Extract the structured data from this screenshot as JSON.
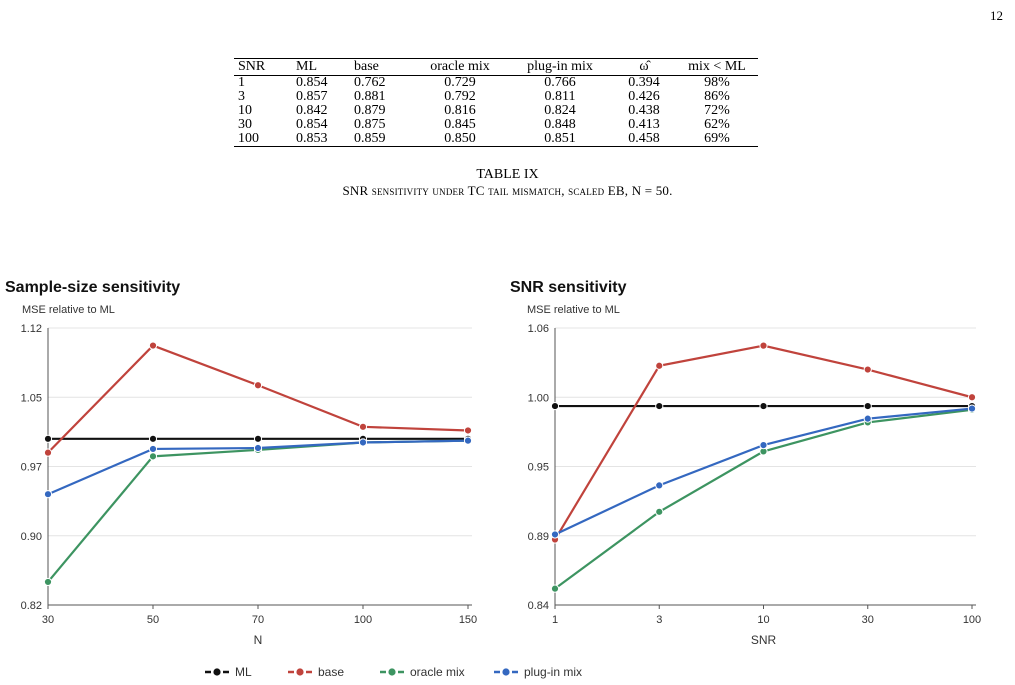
{
  "page_number": "12",
  "table": {
    "headers": [
      "SNR",
      "ML",
      "base",
      "oracle mix",
      "plug-in mix",
      "ω̂",
      "mix < ML"
    ],
    "rows": [
      [
        "1",
        "0.854",
        "0.762",
        "0.729",
        "0.766",
        "0.394",
        "98%"
      ],
      [
        "3",
        "0.857",
        "0.881",
        "0.792",
        "0.811",
        "0.426",
        "86%"
      ],
      [
        "10",
        "0.842",
        "0.879",
        "0.816",
        "0.824",
        "0.438",
        "72%"
      ],
      [
        "30",
        "0.854",
        "0.875",
        "0.845",
        "0.848",
        "0.413",
        "62%"
      ],
      [
        "100",
        "0.853",
        "0.859",
        "0.850",
        "0.851",
        "0.458",
        "69%"
      ]
    ],
    "label": "TABLE IX",
    "caption": "SNR sensitivity under TC tail mismatch, scaled EB, N = 50."
  },
  "chart_data": [
    {
      "type": "line",
      "title": "Sample-size sensitivity",
      "subtitle": "MSE relative to ML",
      "xlabel": "N",
      "ylabel": "",
      "categories": [
        "30",
        "50",
        "70",
        "100",
        "150"
      ],
      "yticks": [
        "0.82",
        "0.90",
        "0.97",
        "1.05",
        "1.12"
      ],
      "ylim": [
        0.82,
        1.12
      ],
      "grid": "horizontal",
      "series": [
        {
          "name": "ML",
          "color": "#111111",
          "values": [
            1.0,
            1.0,
            1.0,
            1.0,
            1.0
          ]
        },
        {
          "name": "base",
          "color": "#c0433c",
          "values": [
            0.985,
            1.101,
            1.058,
            1.013,
            1.009
          ]
        },
        {
          "name": "oracle mix",
          "color": "#3d9461",
          "values": [
            0.845,
            0.981,
            0.988,
            0.996,
            0.998
          ]
        },
        {
          "name": "plug-in mix",
          "color": "#3468c0",
          "values": [
            0.94,
            0.989,
            0.99,
            0.996,
            0.998
          ]
        }
      ]
    },
    {
      "type": "line",
      "title": "SNR sensitivity",
      "subtitle": "MSE relative to ML",
      "xlabel": "SNR",
      "ylabel": "",
      "categories": [
        "1",
        "3",
        "10",
        "30",
        "100"
      ],
      "yticks": [
        "0.84",
        "0.89",
        "0.95",
        "1.00",
        "1.06"
      ],
      "ylim": [
        0.84,
        1.06
      ],
      "grid": "horizontal",
      "series": [
        {
          "name": "ML",
          "color": "#111111",
          "values": [
            0.998,
            0.998,
            0.998,
            0.998,
            0.998
          ]
        },
        {
          "name": "base",
          "color": "#c0433c",
          "values": [
            0.892,
            1.03,
            1.046,
            1.027,
            1.005
          ]
        },
        {
          "name": "oracle mix",
          "color": "#3d9461",
          "values": [
            0.853,
            0.914,
            0.962,
            0.985,
            0.995
          ]
        },
        {
          "name": "plug-in mix",
          "color": "#3468c0",
          "values": [
            0.896,
            0.935,
            0.967,
            0.988,
            0.996
          ]
        }
      ]
    }
  ],
  "legend": {
    "placement": "bottom-center",
    "items": [
      {
        "label": "ML",
        "color": "#111111"
      },
      {
        "label": "base",
        "color": "#c0433c"
      },
      {
        "label": "oracle mix",
        "color": "#3d9461"
      },
      {
        "label": "plug-in mix",
        "color": "#3468c0"
      }
    ]
  }
}
